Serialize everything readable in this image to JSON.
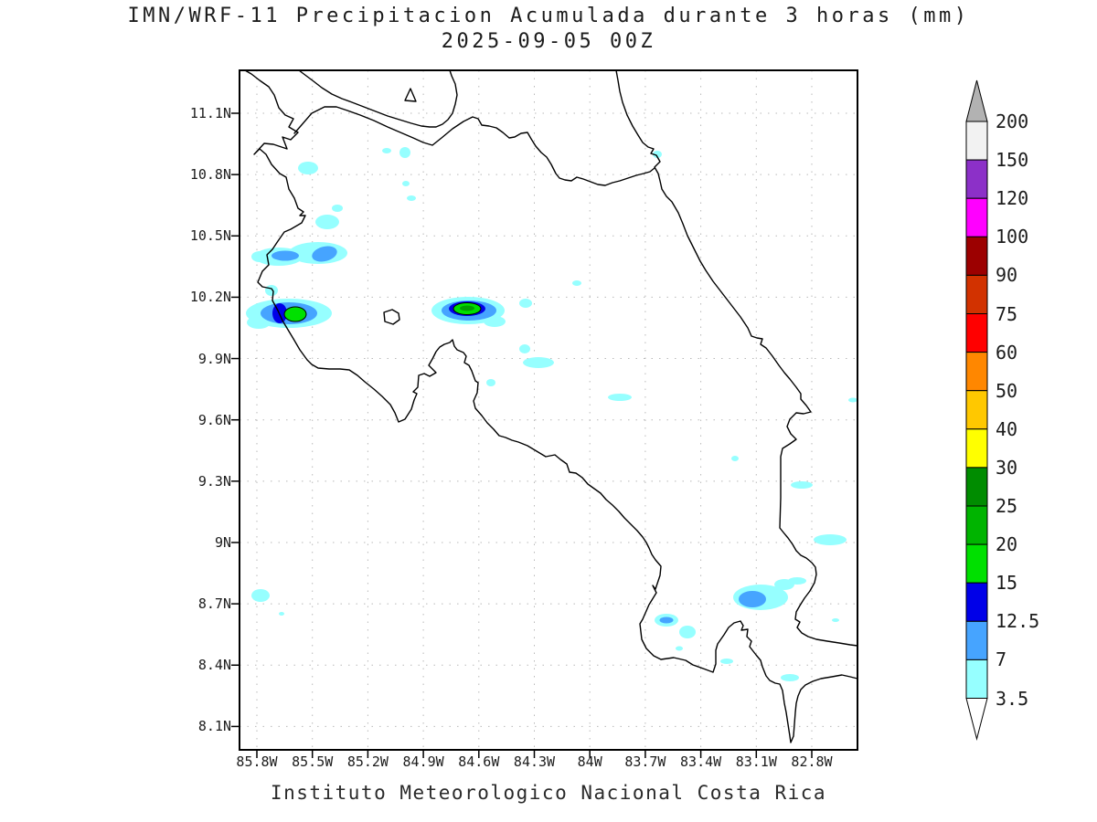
{
  "title": {
    "line1": "IMN/WRF-11 Precipitacion Acumulada durante 3 horas (mm)",
    "line2": "2025-09-05 00Z"
  },
  "caption": "Instituto Meteorologico Nacional Costa Rica",
  "axes": {
    "lat_labels": [
      "11.1N",
      "10.8N",
      "10.5N",
      "10.2N",
      "9.9N",
      "9.6N",
      "9.3N",
      "9N",
      "8.7N",
      "8.4N",
      "8.1N"
    ],
    "lon_labels": [
      "85.8W",
      "85.5W",
      "85.2W",
      "84.9W",
      "84.6W",
      "84.3W",
      "84W",
      "83.7W",
      "83.4W",
      "83.1W",
      "82.8W"
    ]
  },
  "colorbar": {
    "unit": "mm",
    "labels_top_to_bottom": [
      "200",
      "150",
      "120",
      "100",
      "90",
      "75",
      "60",
      "50",
      "40",
      "30",
      "25",
      "20",
      "15",
      "12.5",
      "7",
      "3.5"
    ],
    "colors_top_to_bottom": [
      "#f2f2f2",
      "#8c30c8",
      "#ff00ff",
      "#9c0000",
      "#d23200",
      "#ff0000",
      "#ff8700",
      "#ffc800",
      "#ffff00",
      "#008c00",
      "#00b400",
      "#00e000",
      "#0000e8",
      "#46a4ff",
      "#96ffff"
    ],
    "arrow_top_color": "#b2b2b2",
    "arrow_bottom_color": "#ffffff"
  },
  "map_data": {
    "region": "Costa Rica",
    "projection_extent": {
      "lon_west": 85.9,
      "lon_east": 82.55,
      "lat_south": 8.0,
      "lat_north": 11.3
    },
    "precip_features": [
      {
        "lon": -85.76,
        "lat": 10.13,
        "peak_mm": "15-20",
        "rings": [
          "3.5",
          "7",
          "12.5",
          "15"
        ]
      },
      {
        "lon": -84.62,
        "lat": 10.14,
        "peak_mm": "20-25",
        "rings": [
          "3.5",
          "7",
          "12.5",
          "15",
          "20"
        ]
      },
      {
        "lon": -85.62,
        "lat": 10.42,
        "peak_mm": "7-12.5",
        "rings": [
          "3.5",
          "7"
        ]
      },
      {
        "lon": -83.08,
        "lat": 8.73,
        "peak_mm": "7-12.5",
        "rings": [
          "3.5",
          "7"
        ]
      },
      {
        "lon": -83.55,
        "lat": 8.62,
        "peak_mm": "7-12.5",
        "rings": [
          "3.5",
          "7"
        ]
      },
      {
        "lon": -85.45,
        "lat": 10.83,
        "peak_mm": "3.5-7"
      },
      {
        "lon": -85.85,
        "lat": 8.76,
        "peak_mm": "3.5-7"
      },
      {
        "lon": -84.35,
        "lat": 9.88,
        "peak_mm": "3.5-7"
      },
      {
        "lon": -82.9,
        "lat": 9.02,
        "peak_mm": "3.5-7"
      },
      {
        "lon": -82.7,
        "lat": 9.26,
        "peak_mm": "3.5-7"
      }
    ]
  }
}
